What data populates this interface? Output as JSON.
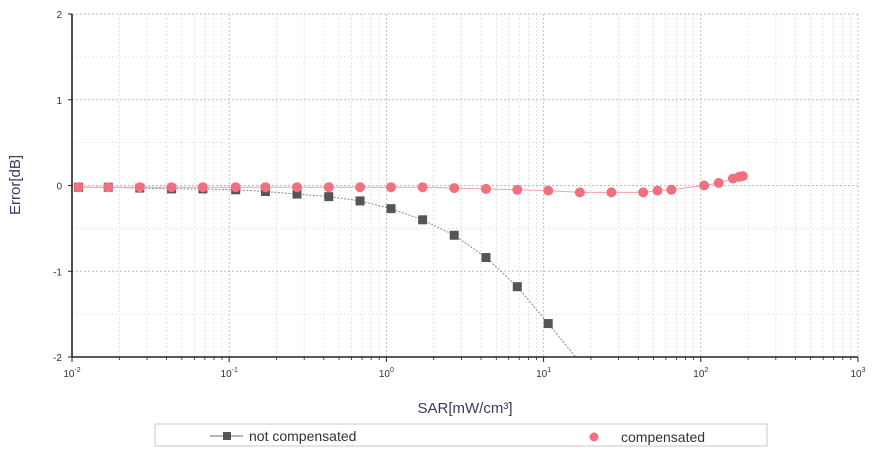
{
  "chart_data": {
    "type": "scatter",
    "xlabel": "SAR[mW/cm³]",
    "ylabel": "Error[dB]",
    "xscale": "log",
    "xlim": [
      0.01,
      1000
    ],
    "ylim": [
      -2,
      2
    ],
    "grid": true,
    "legend_position": "bottom",
    "x_ticks": [
      {
        "value": 0.01,
        "base": "10",
        "exp": "-2"
      },
      {
        "value": 0.1,
        "base": "10",
        "exp": "-1"
      },
      {
        "value": 1,
        "base": "10",
        "exp": "0"
      },
      {
        "value": 10,
        "base": "10",
        "exp": "1"
      },
      {
        "value": 100,
        "base": "10",
        "exp": "2"
      },
      {
        "value": 1000,
        "base": "10",
        "exp": "3"
      }
    ],
    "y_ticks": [
      {
        "value": 2,
        "label": "2"
      },
      {
        "value": 1,
        "label": "1"
      },
      {
        "value": 0,
        "label": "0"
      },
      {
        "value": -1,
        "label": "-1"
      },
      {
        "value": -2,
        "label": "-2"
      }
    ],
    "series": [
      {
        "name": "not compensated",
        "marker": "square",
        "color": "#555555",
        "line_color": "#8a8a8a",
        "x": [
          0.011,
          0.017,
          0.027,
          0.043,
          0.068,
          0.11,
          0.17,
          0.27,
          0.43,
          0.68,
          1.07,
          1.7,
          2.7,
          4.3,
          6.8,
          10.7,
          16
        ],
        "y": [
          -0.02,
          -0.02,
          -0.03,
          -0.04,
          -0.04,
          -0.05,
          -0.07,
          -0.1,
          -0.13,
          -0.18,
          -0.27,
          -0.4,
          -0.58,
          -0.84,
          -1.18,
          -1.61,
          -2.0
        ],
        "marker_count": 16
      },
      {
        "name": "compensated",
        "marker": "circle",
        "color": "#f07080",
        "line_color": "#f4a0a8",
        "x": [
          0.011,
          0.017,
          0.027,
          0.043,
          0.068,
          0.11,
          0.17,
          0.27,
          0.43,
          0.68,
          1.07,
          1.7,
          2.7,
          4.3,
          6.8,
          10.7,
          17,
          27,
          43,
          53,
          65,
          105,
          130,
          160,
          175,
          185
        ],
        "y": [
          -0.02,
          -0.02,
          -0.02,
          -0.02,
          -0.02,
          -0.02,
          -0.02,
          -0.02,
          -0.02,
          -0.02,
          -0.02,
          -0.02,
          -0.03,
          -0.04,
          -0.05,
          -0.06,
          -0.08,
          -0.08,
          -0.08,
          -0.06,
          -0.05,
          0.0,
          0.03,
          0.08,
          0.1,
          0.11
        ]
      }
    ]
  }
}
